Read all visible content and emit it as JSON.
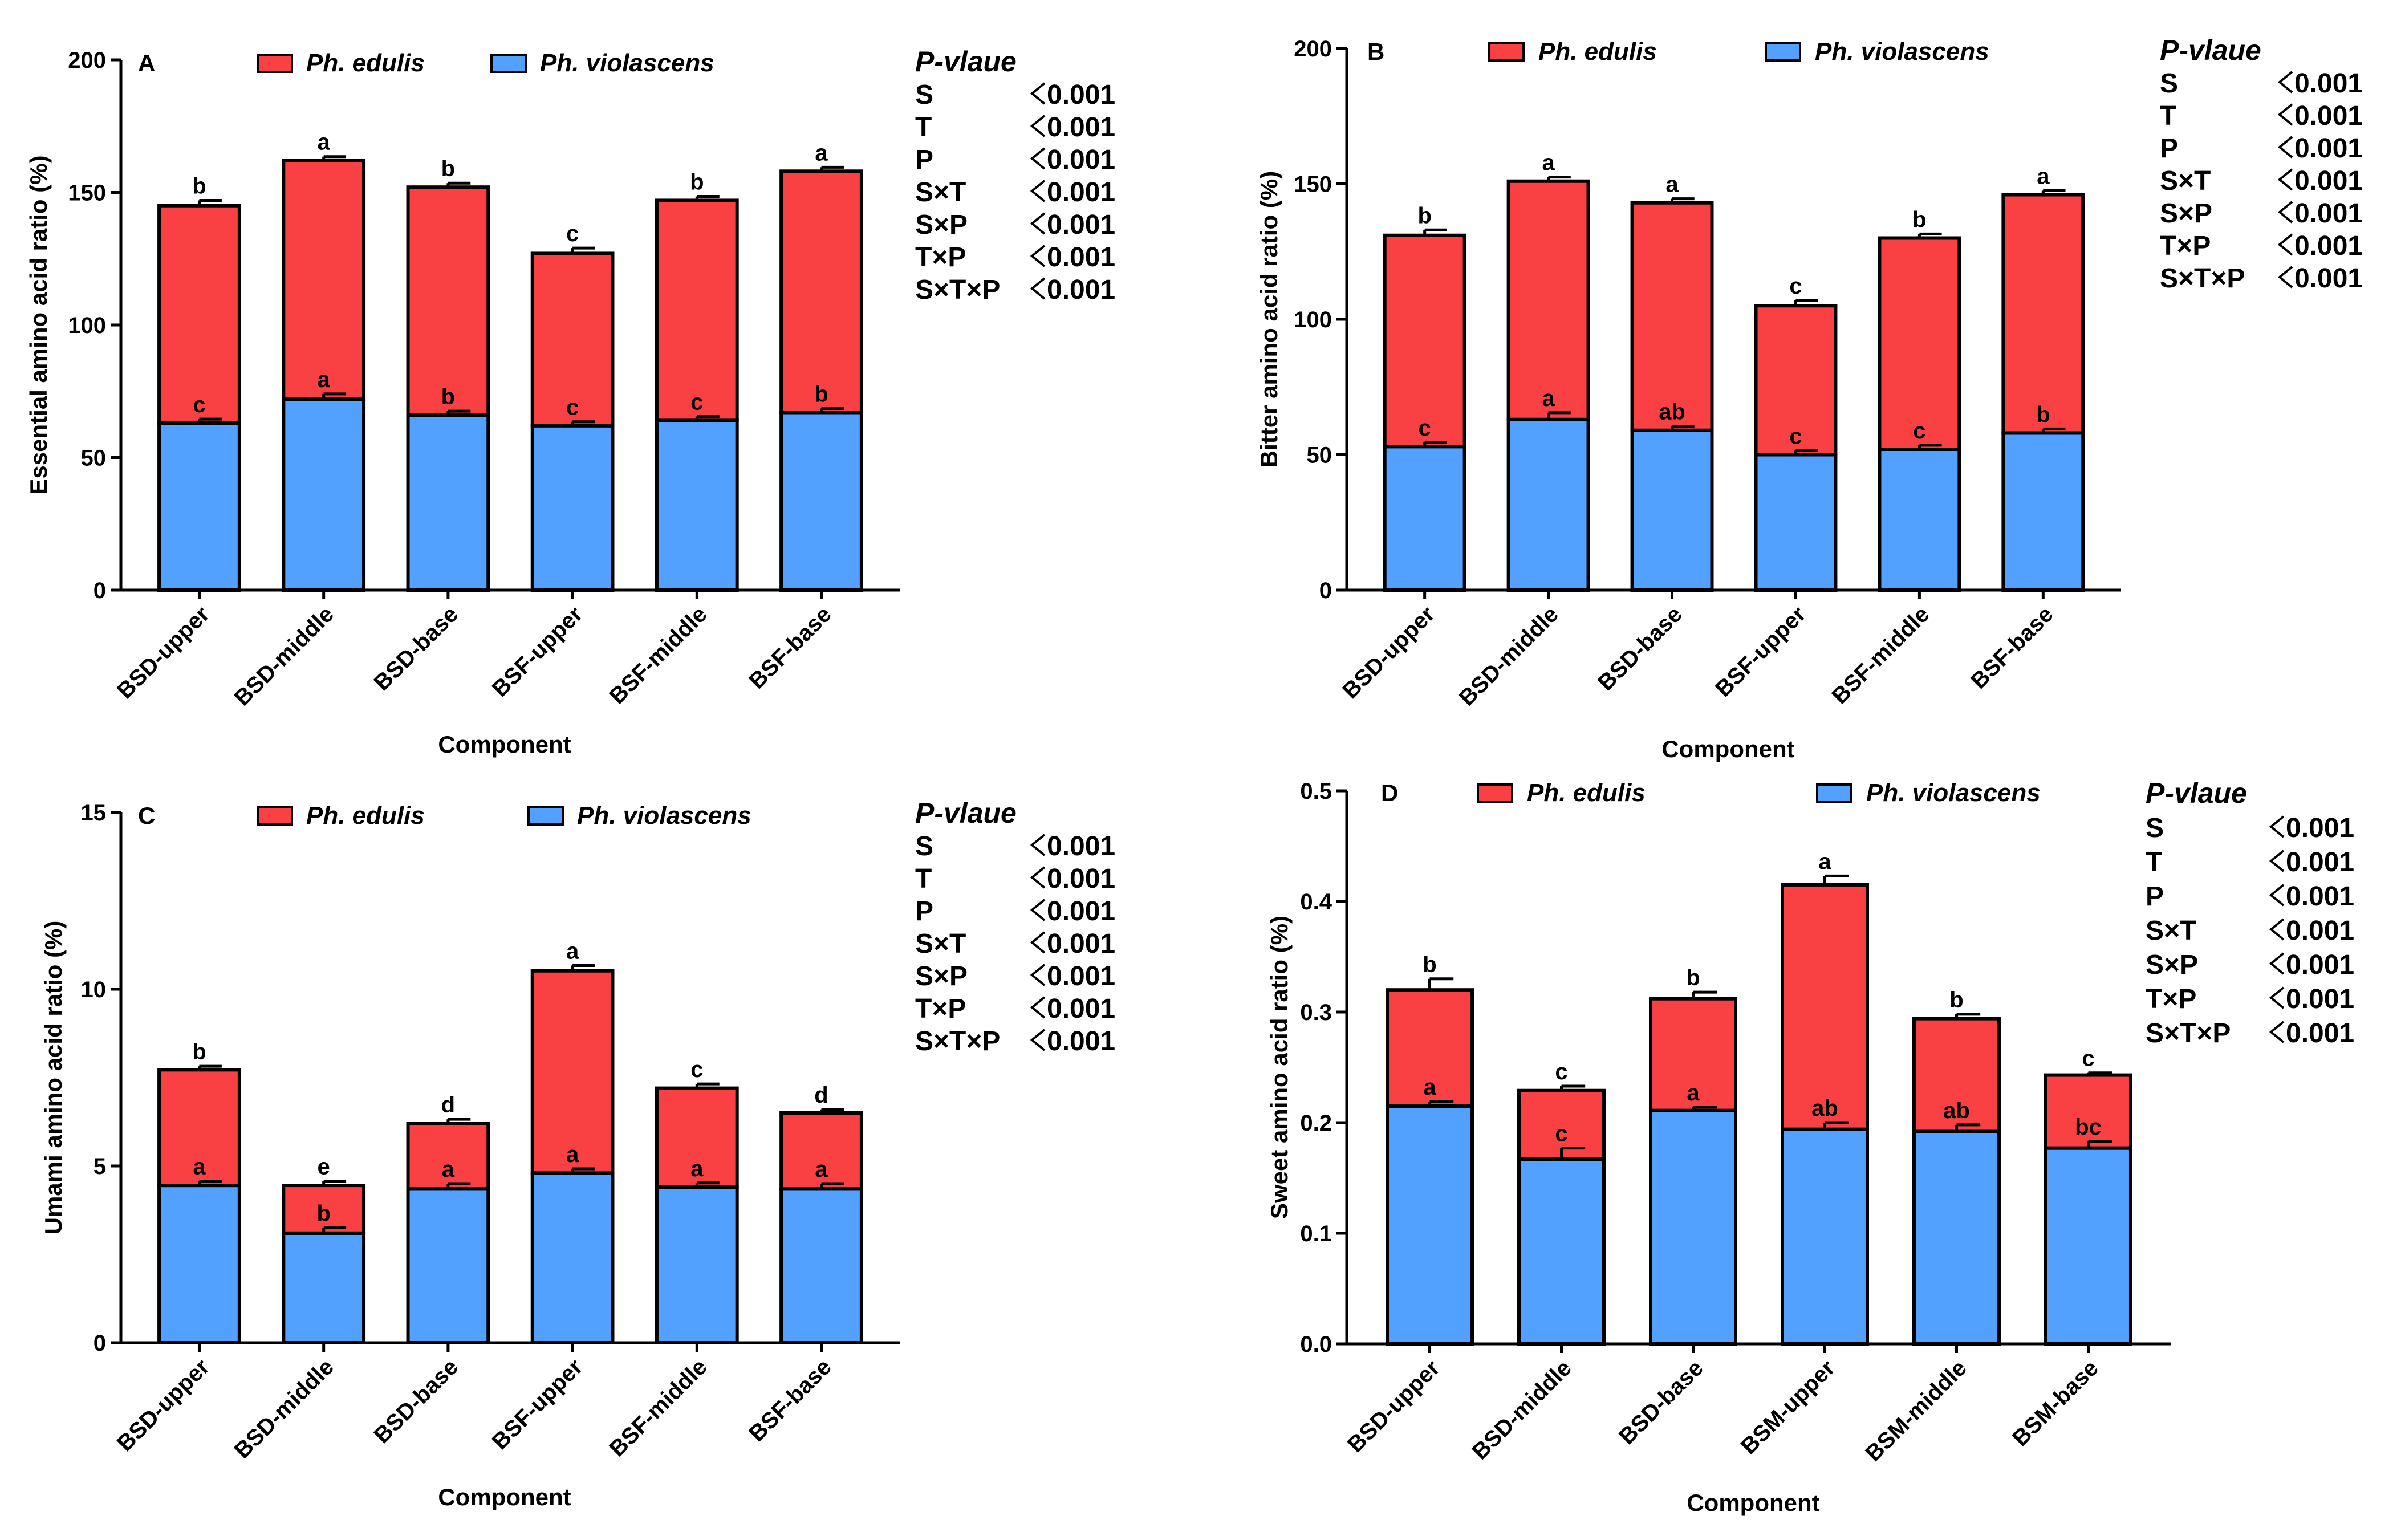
{
  "colors": {
    "edulis": "#F94144",
    "violascens": "#52A0FF",
    "axis": "#000000"
  },
  "pvalue": {
    "title": "P-vlaue",
    "rows": [
      {
        "term": "S",
        "value": "0.001"
      },
      {
        "term": "T",
        "value": "0.001"
      },
      {
        "term": "P",
        "value": "0.001"
      },
      {
        "term": "S×T",
        "value": "0.001"
      },
      {
        "term": "S×P",
        "value": "0.001"
      },
      {
        "term": "T×P",
        "value": "0.001"
      },
      {
        "term": "S×T×P",
        "value": "0.001"
      }
    ]
  },
  "chart_data": [
    {
      "panel": "A",
      "type": "bar",
      "stacked": true,
      "ylabel": "Essential amino acid ratio (%)",
      "xlabel": "Component",
      "ylim": [
        0,
        200
      ],
      "yticks": [
        0,
        50,
        100,
        150,
        200
      ],
      "categories": [
        "BSD-upper",
        "BSD-middle",
        "BSD-base",
        "BSF-upper",
        "BSF-middle",
        "BSF-base"
      ],
      "series": [
        {
          "name": "Ph. violascens",
          "values": [
            63,
            72,
            66,
            62,
            64,
            67
          ],
          "errors": [
            1.5,
            2,
            1.5,
            1.5,
            1.5,
            1.5
          ],
          "letters": [
            "c",
            "a",
            "b",
            "c",
            "c",
            "b"
          ]
        },
        {
          "name": "Ph. edulis",
          "values": [
            82,
            90,
            86,
            65,
            83,
            91
          ],
          "errors": [
            2,
            1.5,
            1.5,
            2,
            1.5,
            1.5
          ],
          "letters": [
            "b",
            "a",
            "b",
            "c",
            "b",
            "a"
          ]
        }
      ],
      "legend": [
        "Ph. edulis",
        "Ph. violascens"
      ]
    },
    {
      "panel": "B",
      "type": "bar",
      "stacked": true,
      "ylabel": "Bitter amino acid ratio (%)",
      "xlabel": "Component",
      "ylim": [
        0,
        200
      ],
      "yticks": [
        0,
        50,
        100,
        150,
        200
      ],
      "categories": [
        "BSD-upper",
        "BSD-middle",
        "BSD-base",
        "BSF-upper",
        "BSF-middle",
        "BSF-base"
      ],
      "series": [
        {
          "name": "Ph. violascens",
          "values": [
            53,
            63,
            59,
            50,
            52,
            58
          ],
          "errors": [
            1.5,
            2.5,
            1.5,
            1.5,
            1.5,
            1.5
          ],
          "letters": [
            "c",
            "a",
            "ab",
            "c",
            "c",
            "b"
          ]
        },
        {
          "name": "Ph. edulis",
          "values": [
            78,
            88,
            84,
            55,
            78,
            88
          ],
          "errors": [
            2,
            1.5,
            1.5,
            2,
            1.5,
            1.5
          ],
          "letters": [
            "b",
            "a",
            "a",
            "c",
            "b",
            "a"
          ]
        }
      ],
      "legend": [
        "Ph. edulis",
        "Ph. violascens"
      ]
    },
    {
      "panel": "C",
      "type": "bar",
      "stacked": true,
      "ylabel": "Umami amino acid ratio (%)",
      "xlabel": "Component",
      "ylim": [
        0,
        15
      ],
      "yticks": [
        0,
        5,
        10,
        15
      ],
      "categories": [
        "BSD-upper",
        "BSD-middle",
        "BSD-base",
        "BSF-upper",
        "BSF-middle",
        "BSF-base"
      ],
      "series": [
        {
          "name": "Ph. violascens",
          "values": [
            4.45,
            3.1,
            4.35,
            4.8,
            4.4,
            4.35
          ],
          "errors": [
            0.12,
            0.15,
            0.15,
            0.12,
            0.12,
            0.15
          ],
          "letters": [
            "a",
            "b",
            "a",
            "a",
            "a",
            "a"
          ]
        },
        {
          "name": "Ph. edulis",
          "values": [
            3.27,
            1.35,
            1.85,
            5.72,
            2.8,
            2.15
          ],
          "errors": [
            0.1,
            0.12,
            0.12,
            0.15,
            0.12,
            0.1
          ],
          "letters": [
            "b",
            "e",
            "d",
            "a",
            "c",
            "d"
          ]
        }
      ],
      "legend": [
        "Ph. edulis",
        "Ph. violascens"
      ]
    },
    {
      "panel": "D",
      "type": "bar",
      "stacked": true,
      "ylabel": "Sweet amino acid ratio (%)",
      "xlabel": "Component",
      "ylim": [
        0,
        0.5
      ],
      "yticks": [
        "0.0",
        "0.1",
        "0.2",
        "0.3",
        "0.4",
        "0.5"
      ],
      "categories": [
        "BSD-upper",
        "BSD-middle",
        "BSD-base",
        "BSM-upper",
        "BSM-middle",
        "BSM-base"
      ],
      "series": [
        {
          "name": "Ph. violascens",
          "values": [
            0.215,
            0.167,
            0.211,
            0.194,
            0.192,
            0.177
          ],
          "errors": [
            0.004,
            0.01,
            0.003,
            0.006,
            0.006,
            0.006
          ],
          "letters": [
            "a",
            "c",
            "a",
            "ab",
            "ab",
            "bc"
          ]
        },
        {
          "name": "Ph. edulis",
          "values": [
            0.105,
            0.062,
            0.101,
            0.221,
            0.102,
            0.066
          ],
          "errors": [
            0.01,
            0.004,
            0.006,
            0.008,
            0.004,
            0.002
          ],
          "letters": [
            "b",
            "c",
            "b",
            "a",
            "b",
            "c"
          ]
        }
      ],
      "legend": [
        "Ph. edulis",
        "Ph. violascens"
      ]
    }
  ]
}
